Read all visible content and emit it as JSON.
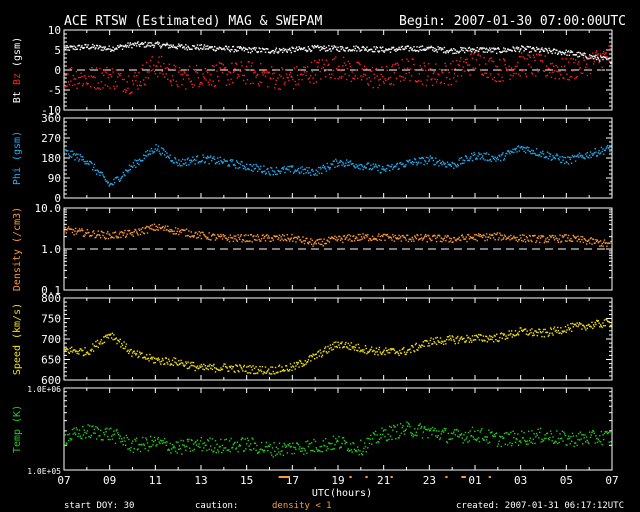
{
  "header": {
    "title": "ACE RTSW (Estimated) MAG & SWEPAM",
    "begin": "Begin: 2007-01-30 07:00:00UTC"
  },
  "footer": {
    "start_doy": "start DOY:  30",
    "caution": "caution:",
    "density_note": "density < 1",
    "created": "created: 2007-01-31 06:17:12UTC"
  },
  "colors": {
    "bt": "#ffffff",
    "bz": "#ff2020",
    "phi": "#22aaee",
    "density": "#ff9933",
    "speed": "#f2e010",
    "temp": "#22cc22",
    "axes": "#ffffff",
    "caution": "#ff9933"
  },
  "chart_data": [
    {
      "type": "scatter",
      "ylabel_parts": [
        "Bt",
        "Bz",
        "(gsm)"
      ],
      "ylim": [
        -10,
        10
      ],
      "yticks": [
        10,
        5,
        0,
        -5,
        -10
      ],
      "ytick_labels": [
        "10",
        "5",
        "0",
        "-5",
        "-10"
      ],
      "reference_line": 0,
      "x_hours": [
        0,
        1,
        2,
        3,
        4,
        5,
        6,
        7,
        8,
        9,
        10,
        11,
        12,
        13,
        14,
        15,
        16,
        17,
        18,
        19,
        20,
        21,
        22,
        23
      ],
      "series": [
        {
          "values": [
            5.5,
            6.0,
            5.5,
            6.5,
            6.5,
            6.0,
            5.8,
            5.5,
            5.2,
            5.0,
            5.2,
            5.6,
            5.5,
            5.6,
            5.2,
            5.5,
            5.5,
            5.0,
            5.3,
            5.0,
            5.5,
            5.0,
            4.5,
            3.5
          ]
        },
        {
          "values": [
            -1,
            -2,
            -1.5,
            -3,
            1.5,
            -2,
            -1,
            -1,
            -0.5,
            -1.5,
            -2,
            0,
            1,
            -1,
            -2,
            0.5,
            -1,
            -0.5,
            2.5,
            0,
            1.5,
            1,
            0,
            2
          ]
        }
      ]
    },
    {
      "type": "scatter",
      "ylabel": "Phi (gsm)",
      "ylim": [
        0,
        360
      ],
      "yticks": [
        360,
        270,
        180,
        90,
        0
      ],
      "ytick_labels": [
        "360",
        "270",
        "180",
        "90",
        "0"
      ],
      "x_hours": [
        0,
        1,
        2,
        3,
        4,
        5,
        6,
        7,
        8,
        9,
        10,
        11,
        12,
        13,
        14,
        15,
        16,
        17,
        18,
        19,
        20,
        21,
        22,
        23
      ],
      "values": [
        210,
        170,
        60,
        150,
        230,
        160,
        180,
        165,
        145,
        125,
        130,
        120,
        165,
        150,
        130,
        160,
        175,
        150,
        195,
        180,
        230,
        200,
        170,
        200
      ]
    },
    {
      "type": "scatter",
      "ylabel": "Density (/cm3)",
      "scale": "log",
      "ylim": [
        0.1,
        10
      ],
      "yticks": [
        10,
        1,
        0.1
      ],
      "ytick_labels": [
        "10.0",
        "1.0",
        "0.1"
      ],
      "reference_line": 1,
      "x_hours": [
        0,
        1,
        2,
        3,
        4,
        5,
        6,
        7,
        8,
        9,
        10,
        11,
        12,
        13,
        14,
        15,
        16,
        17,
        18,
        19,
        20,
        21,
        22,
        23
      ],
      "values": [
        3.0,
        2.5,
        2.2,
        2.5,
        3.5,
        2.8,
        2.2,
        1.9,
        1.9,
        1.9,
        1.9,
        1.4,
        1.8,
        2.0,
        2.0,
        1.9,
        1.9,
        1.8,
        2.0,
        2.1,
        1.9,
        1.8,
        1.9,
        1.6
      ]
    },
    {
      "type": "scatter",
      "ylabel": "Speed (km/s)",
      "ylim": [
        600,
        800
      ],
      "yticks": [
        800,
        750,
        700,
        650,
        600
      ],
      "ytick_labels": [
        "800",
        "750",
        "700",
        "650",
        "600"
      ],
      "x_hours": [
        0,
        1,
        2,
        3,
        4,
        5,
        6,
        7,
        8,
        9,
        10,
        11,
        12,
        13,
        14,
        15,
        16,
        17,
        18,
        19,
        20,
        21,
        22,
        23
      ],
      "values": [
        675,
        670,
        715,
        665,
        650,
        645,
        630,
        632,
        628,
        625,
        632,
        660,
        690,
        678,
        670,
        672,
        695,
        700,
        703,
        705,
        720,
        715,
        728,
        735
      ]
    },
    {
      "type": "scatter",
      "ylabel": "Temp (K)",
      "scale": "log",
      "ylim": [
        100000,
        1000000
      ],
      "yticks": [
        1000000,
        100000
      ],
      "ytick_labels": [
        "1.0E+06",
        "1.0E+05"
      ],
      "x_hours": [
        0,
        1,
        2,
        3,
        4,
        5,
        6,
        7,
        8,
        9,
        10,
        11,
        12,
        13,
        14,
        15,
        16,
        17,
        18,
        19,
        20,
        21,
        22,
        23
      ],
      "values": [
        250000,
        300000,
        280000,
        200000,
        220000,
        190000,
        210000,
        200000,
        210000,
        180000,
        190000,
        200000,
        220000,
        190000,
        280000,
        320000,
        300000,
        260000,
        280000,
        240000,
        250000,
        270000,
        240000,
        250000
      ]
    }
  ],
  "x_axis": {
    "label": "UTC(hours)",
    "tick_labels": [
      "07",
      "09",
      "11",
      "13",
      "15",
      "17",
      "19",
      "21",
      "23",
      "01",
      "03",
      "05",
      "07"
    ]
  }
}
